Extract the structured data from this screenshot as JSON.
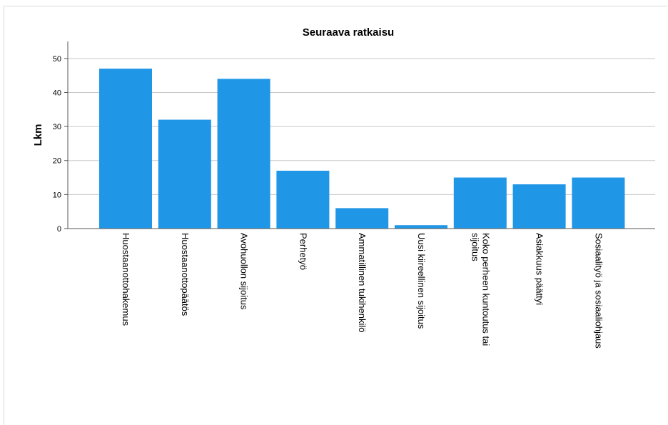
{
  "chart_data": {
    "type": "bar",
    "title": "Seuraava ratkaisu",
    "xlabel": "",
    "ylabel": "Lkm",
    "ylim": [
      0,
      55
    ],
    "yticks": [
      0,
      10,
      20,
      30,
      40,
      50
    ],
    "grid": true,
    "bar_color": "#1f96e6",
    "categories": [
      [
        "Huostaanottohakemus"
      ],
      [
        "Huostaanottopäätös"
      ],
      [
        "Avohuollon sijoitus"
      ],
      [
        "Perhetyö"
      ],
      [
        "Ammatillinen tukihenkilö"
      ],
      [
        "Uusi kiireellinen sijoitus"
      ],
      [
        "Koko perheen kuntoutus tai",
        "sijoitus"
      ],
      [
        "Asiakkuus päättyi"
      ],
      [
        "Sosiaalityö ja sosiaaliohjaus"
      ]
    ],
    "values": [
      47,
      32,
      44,
      17,
      6,
      1,
      15,
      13,
      15
    ]
  }
}
